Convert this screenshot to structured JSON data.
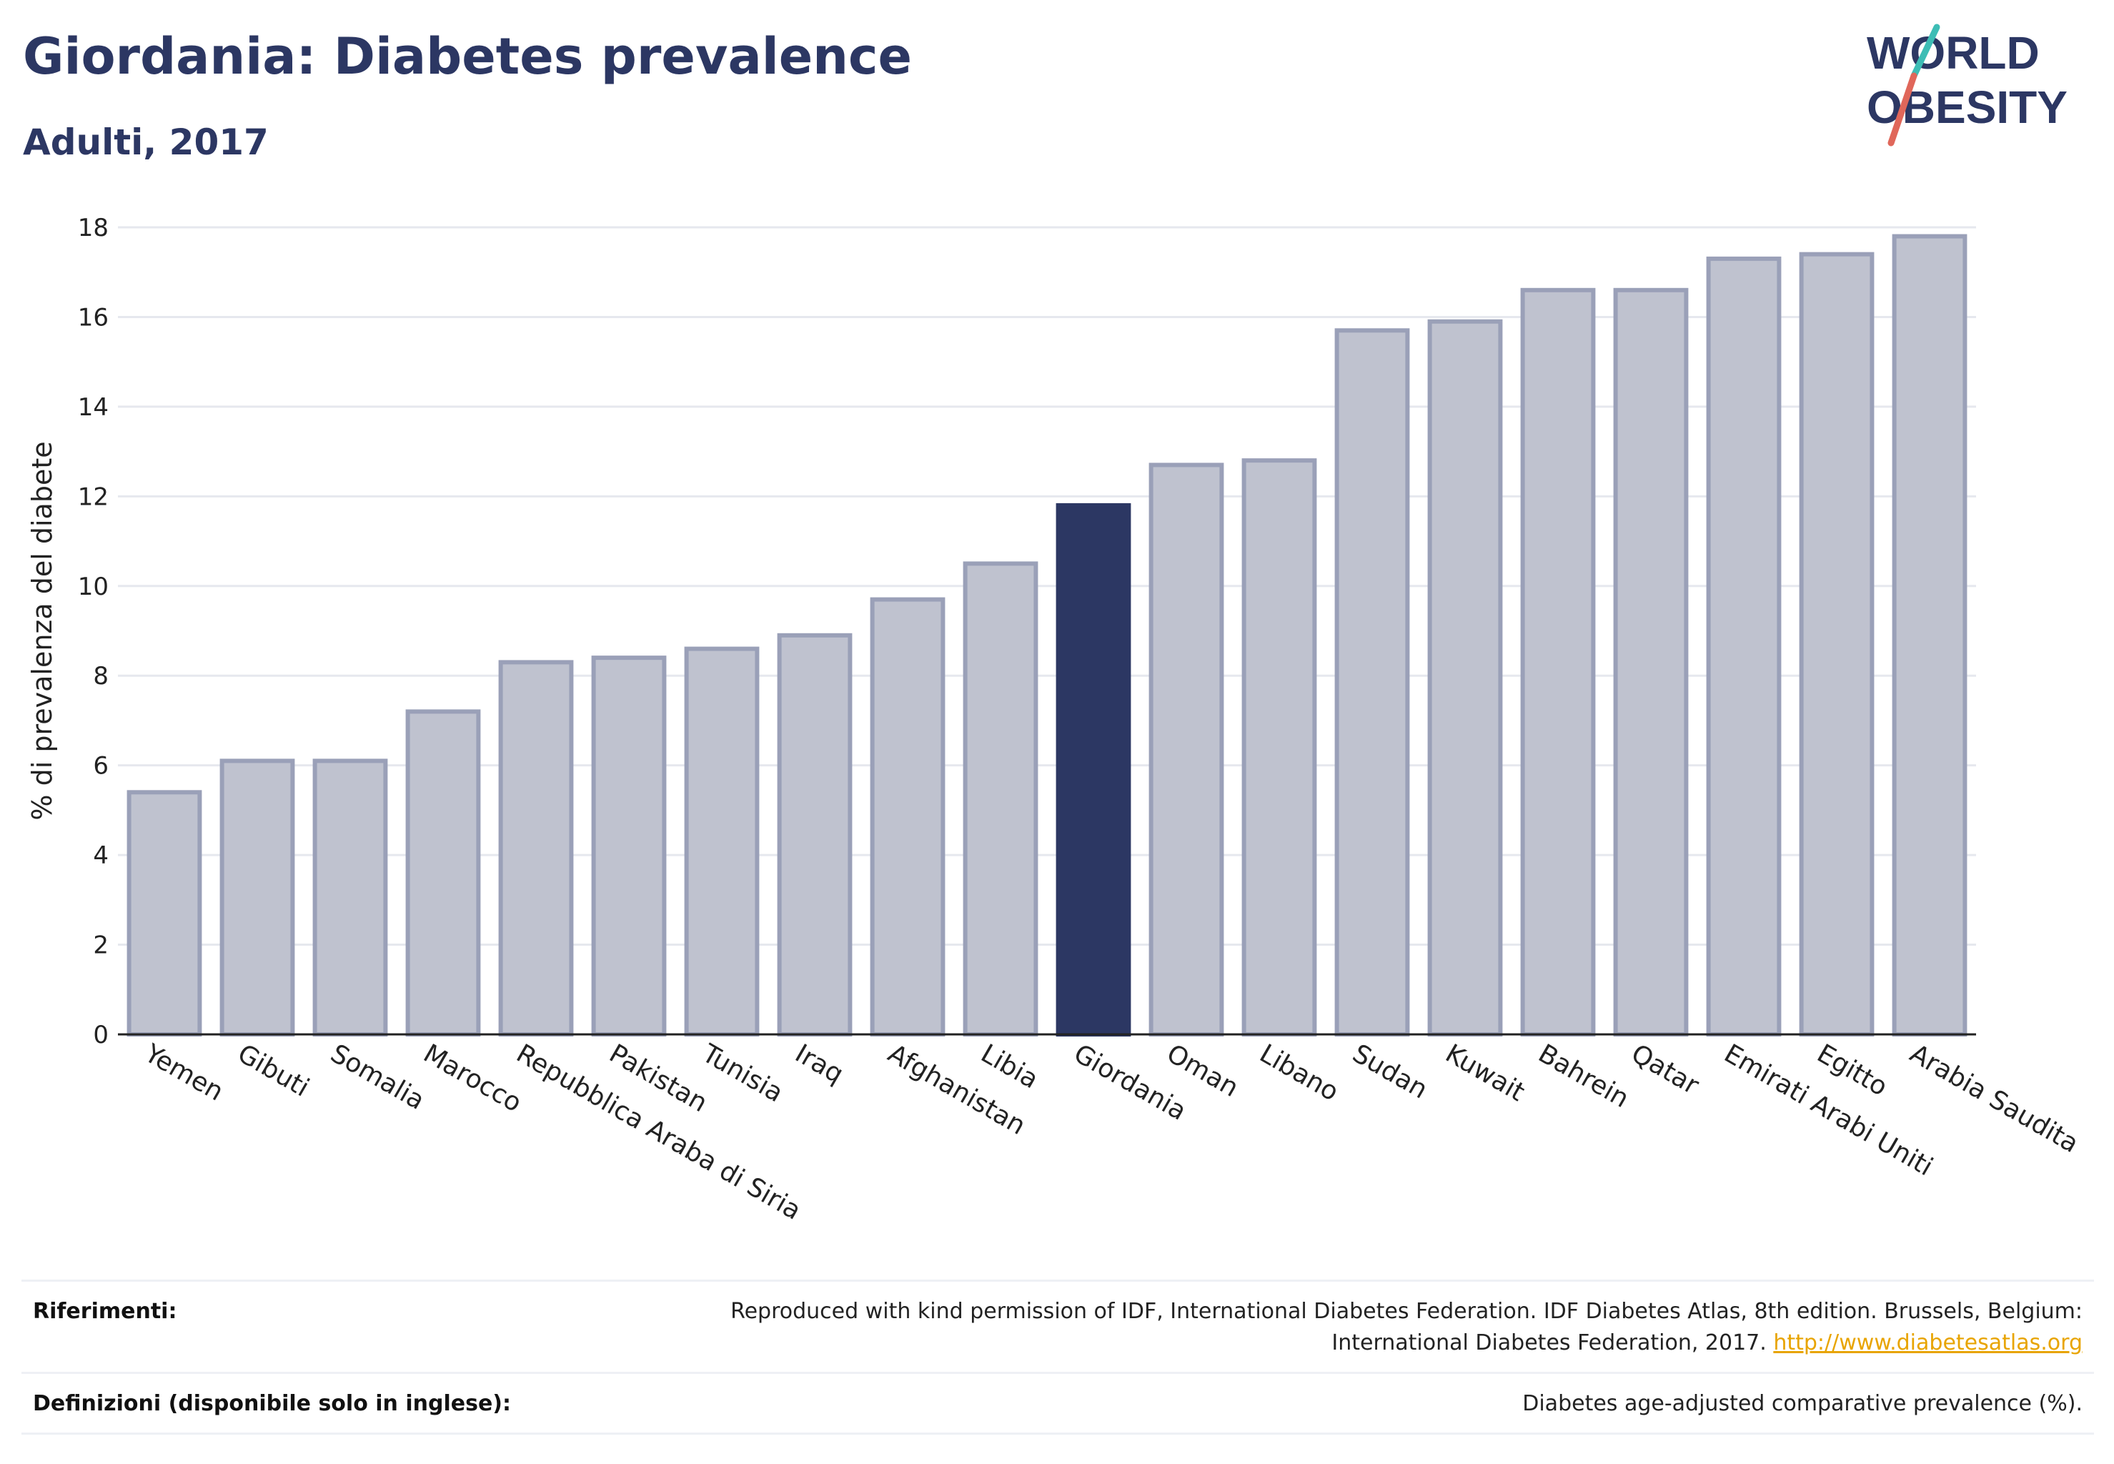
{
  "header": {
    "title": "Giordania: Diabetes prevalence",
    "subtitle": "Adulti, 2017",
    "logo_line1": "WORLD",
    "logo_line2": "OBESITY"
  },
  "colors": {
    "highlight": "#2c3763",
    "bar_fill": "#bfc2cf",
    "bar_stroke": "#9aa0b8",
    "title": "#2c3763",
    "link": "#e8a400",
    "logo_accent_teal": "#3dbdb5",
    "logo_accent_red": "#e0675a"
  },
  "chart_data": {
    "type": "bar",
    "title": "Giordania: Diabetes prevalence",
    "subtitle": "Adulti, 2017",
    "xlabel": "",
    "ylabel": "% di prevalenza del diabete",
    "ylim": [
      0,
      18
    ],
    "yticks": [
      0,
      2,
      4,
      6,
      8,
      10,
      12,
      14,
      16,
      18
    ],
    "grid": true,
    "highlight_category": "Giordania",
    "categories": [
      "Yemen",
      "Gibuti",
      "Somalia",
      "Marocco",
      "Repubblica Araba di Siria",
      "Pakistan",
      "Tunisia",
      "Iraq",
      "Afghanistan",
      "Libia",
      "Giordania",
      "Oman",
      "Libano",
      "Sudan",
      "Kuwait",
      "Bahrein",
      "Qatar",
      "Emirati Arabi Uniti",
      "Egitto",
      "Arabia Saudita"
    ],
    "values": [
      5.4,
      6.1,
      6.1,
      7.2,
      8.3,
      8.4,
      8.6,
      8.9,
      9.7,
      10.5,
      11.8,
      12.7,
      12.8,
      15.7,
      15.9,
      16.6,
      16.6,
      17.3,
      17.4,
      17.8
    ]
  },
  "footer": {
    "references_label": "Riferimenti:",
    "references_text": "Reproduced with kind permission of IDF, International Diabetes Federation. IDF Diabetes Atlas, 8th edition. Brussels, Belgium: International Diabetes Federation, 2017.",
    "references_link": "http://www.diabetesatlas.org",
    "definitions_label": "Definizioni (disponibile solo in inglese):",
    "definitions_text": "Diabetes age-adjusted comparative prevalence (%)."
  }
}
